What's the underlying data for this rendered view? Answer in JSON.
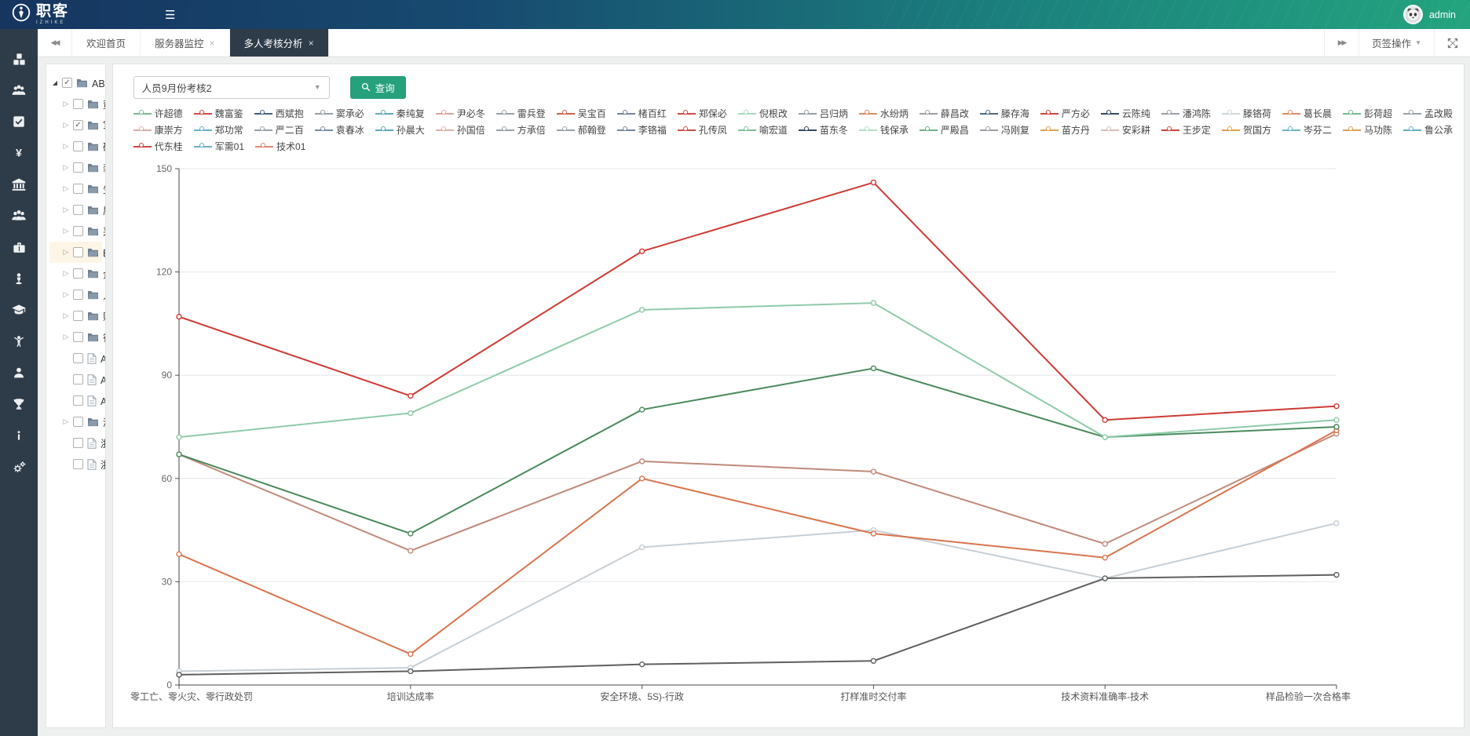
{
  "navbar": {
    "logo_text": "职客",
    "logo_subtext": "IZHIKE",
    "username": "admin"
  },
  "sidebar": {
    "icons": [
      "cubes-icon",
      "user-group-icon",
      "check-square-icon",
      "yuan-icon",
      "bank-icon",
      "team-icon",
      "briefcase-icon",
      "podium-icon",
      "graduation-cap-icon",
      "cheer-person-icon",
      "user-icon",
      "trophy-icon",
      "info-icon",
      "gears-icon"
    ]
  },
  "tabbar": {
    "tabs": [
      {
        "label": "欢迎首页",
        "closable": false,
        "active": false
      },
      {
        "label": "服务器监控",
        "closable": true,
        "active": false
      },
      {
        "label": "多人考核分析",
        "closable": true,
        "active": true
      }
    ],
    "tab_actions_label": "页签操作"
  },
  "tree": {
    "items": [
      {
        "label": "ABC公司",
        "type": "folder",
        "level": 0,
        "checked": true,
        "expander": "expanded",
        "highlighted": false
      },
      {
        "label": "董事会办公室",
        "type": "folder",
        "level": 1,
        "checked": false,
        "expander": "collapsed",
        "highlighted": false
      },
      {
        "label": "军需部",
        "type": "folder",
        "level": 1,
        "checked": true,
        "expander": "collapsed",
        "highlighted": false
      },
      {
        "label": "研发中心",
        "type": "folder",
        "level": 1,
        "checked": false,
        "expander": "collapsed",
        "highlighted": false
      },
      {
        "label": "装备部",
        "type": "folder",
        "level": 1,
        "checked": false,
        "expander": "collapsed",
        "highlighted": false
      },
      {
        "label": "生产系统",
        "type": "folder",
        "level": 1,
        "checked": false,
        "expander": "collapsed",
        "highlighted": false
      },
      {
        "label": "质量部",
        "type": "folder",
        "level": 1,
        "checked": false,
        "expander": "collapsed",
        "highlighted": false
      },
      {
        "label": "采购部",
        "type": "folder",
        "level": 1,
        "checked": false,
        "expander": "collapsed",
        "highlighted": false
      },
      {
        "label": "EHS部",
        "type": "folder",
        "level": 1,
        "checked": false,
        "expander": "collapsed",
        "highlighted": true
      },
      {
        "label": "企划信息部",
        "type": "folder",
        "level": 1,
        "checked": false,
        "expander": "collapsed",
        "highlighted": false
      },
      {
        "label": "人力资源部",
        "type": "folder",
        "level": 1,
        "checked": false,
        "expander": "collapsed",
        "highlighted": false
      },
      {
        "label": "财务管理部",
        "type": "folder",
        "level": 1,
        "checked": false,
        "expander": "collapsed",
        "highlighted": false
      },
      {
        "label": "行政部",
        "type": "folder",
        "level": 1,
        "checked": false,
        "expander": "collapsed",
        "highlighted": false
      },
      {
        "label": "ABC公司北京分公司",
        "type": "doc",
        "level": 1,
        "checked": false,
        "expander": "none",
        "highlighted": false
      },
      {
        "label": "ABC公司上海分公司",
        "type": "doc",
        "level": 1,
        "checked": false,
        "expander": "none",
        "highlighted": false
      },
      {
        "label": "ABC公司宁夏分公司",
        "type": "doc",
        "level": 1,
        "checked": false,
        "expander": "none",
        "highlighted": false
      },
      {
        "label": "浙江D公司",
        "type": "folder",
        "level": 1,
        "checked": false,
        "expander": "collapsed",
        "highlighted": false
      },
      {
        "label": "浙江E公司",
        "type": "doc",
        "level": 1,
        "checked": false,
        "expander": "none",
        "highlighted": false
      },
      {
        "label": "浙江F公司",
        "type": "doc",
        "level": 1,
        "checked": false,
        "expander": "none",
        "highlighted": false
      }
    ]
  },
  "toolbar": {
    "report_select_value": "人员9月份考核2",
    "query_button_label": "查询"
  },
  "chart_data": {
    "type": "line",
    "categories": [
      "零工亡、零火灾、零行政处罚",
      "培训达成率",
      "安全环境、5S)-行政",
      "打样准时交付率",
      "技术资料准确率-技术",
      "样品检验一次合格率"
    ],
    "y_ticks": [
      0,
      30,
      60,
      90,
      120,
      150
    ],
    "ylim": [
      0,
      150
    ],
    "grid": true,
    "legend_position": "top",
    "legend_rows": [
      [
        {
          "name": "许超德",
          "color": "#7fb998"
        },
        {
          "name": "魏富鉴",
          "color": "#cf4a44"
        },
        {
          "name": "西斌抱",
          "color": "#44607a"
        },
        {
          "name": "窦承必",
          "color": "#9aa0a6"
        },
        {
          "name": "秦纯复",
          "color": "#64a8bc"
        },
        {
          "name": "尹必冬",
          "color": "#dca49a"
        },
        {
          "name": "雷兵登",
          "color": "#9aa0a6"
        },
        {
          "name": "吴宝百",
          "color": "#d2604f"
        },
        {
          "name": "楮百红",
          "color": "#74869c"
        },
        {
          "name": "郑保必",
          "color": "#cf4a44"
        },
        {
          "name": "倪根改",
          "color": "#a9d8c0"
        },
        {
          "name": "吕归炳",
          "color": "#9aa0a6"
        },
        {
          "name": "水纷炳",
          "color": "#e08a62"
        },
        {
          "name": "薛昌改",
          "color": "#9aa0a6"
        },
        {
          "name": "滕存海",
          "color": "#4a6880"
        },
        {
          "name": "严方必",
          "color": "#d0443e"
        },
        {
          "name": "云陈纯",
          "color": "#33495e"
        },
        {
          "name": "潘鸿陈",
          "color": "#9aa0a6"
        },
        {
          "name": "滕铬荷",
          "color": "#cdd6dc"
        },
        {
          "name": "葛长晨",
          "color": "#dd8a62"
        },
        {
          "name": "彭荷超",
          "color": "#79b88e"
        },
        {
          "name": "孟改殿",
          "color": "#9aa0a6"
        }
      ],
      [
        {
          "name": "康崇方",
          "color": "#d6b0a6"
        },
        {
          "name": "郑功常",
          "color": "#64b2c4"
        },
        {
          "name": "严二百",
          "color": "#9aa0a6"
        },
        {
          "name": "袁春冰",
          "color": "#7a8ca0"
        },
        {
          "name": "孙晨大",
          "color": "#5ea8be"
        },
        {
          "name": "孙国倍",
          "color": "#dfb2a8"
        },
        {
          "name": "方承倍",
          "color": "#9aa0a6"
        },
        {
          "name": "郝翰登",
          "color": "#9aa0a6"
        },
        {
          "name": "李铬福",
          "color": "#74869c"
        },
        {
          "name": "孔传凤",
          "color": "#cc4f48"
        },
        {
          "name": "喻宏道",
          "color": "#7fbf96"
        },
        {
          "name": "苗东冬",
          "color": "#33495e"
        },
        {
          "name": "钱保承",
          "color": "#b6dec8"
        },
        {
          "name": "严殿昌",
          "color": "#6cb084"
        },
        {
          "name": "冯刚复",
          "color": "#9aa0a6"
        },
        {
          "name": "苗方丹",
          "color": "#e0a050"
        },
        {
          "name": "安彩耕",
          "color": "#d8beb8"
        },
        {
          "name": "王步定",
          "color": "#cc453f"
        },
        {
          "name": "贺国方",
          "color": "#dfa048"
        },
        {
          "name": "岑芬二",
          "color": "#68b4c6"
        },
        {
          "name": "马功陈",
          "color": "#e0a054"
        },
        {
          "name": "鲁公承",
          "color": "#60b0c2"
        }
      ],
      [
        {
          "name": "代东桂",
          "color": "#cc453f"
        },
        {
          "name": "军需01",
          "color": "#68b4c6"
        },
        {
          "name": "技术01",
          "color": "#dd8a72"
        }
      ]
    ],
    "series": [
      {
        "name": "light-gray-line",
        "color": "#c6cfd6",
        "values": [
          4,
          5,
          40,
          45,
          31,
          47
        ]
      },
      {
        "name": "dark-gray-line",
        "color": "#5f5f5f",
        "values": [
          3,
          4,
          6,
          7,
          31,
          32
        ]
      },
      {
        "name": "salmon-line",
        "color": "#c08a7a",
        "values": [
          67,
          39,
          65,
          62,
          41,
          73
        ]
      },
      {
        "name": "orange-line",
        "color": "#d9744d",
        "values": [
          38,
          9,
          60,
          44,
          37,
          74
        ]
      },
      {
        "name": "dark-green-line",
        "color": "#4a8a5c",
        "values": [
          67,
          44,
          80,
          92,
          72,
          75
        ]
      },
      {
        "name": "light-green-line",
        "color": "#8fcbaa",
        "values": [
          72,
          79,
          109,
          111,
          72,
          77
        ]
      },
      {
        "name": "red-line",
        "color": "#cf3a35",
        "values": [
          107,
          84,
          126,
          146,
          77,
          81
        ]
      }
    ]
  }
}
